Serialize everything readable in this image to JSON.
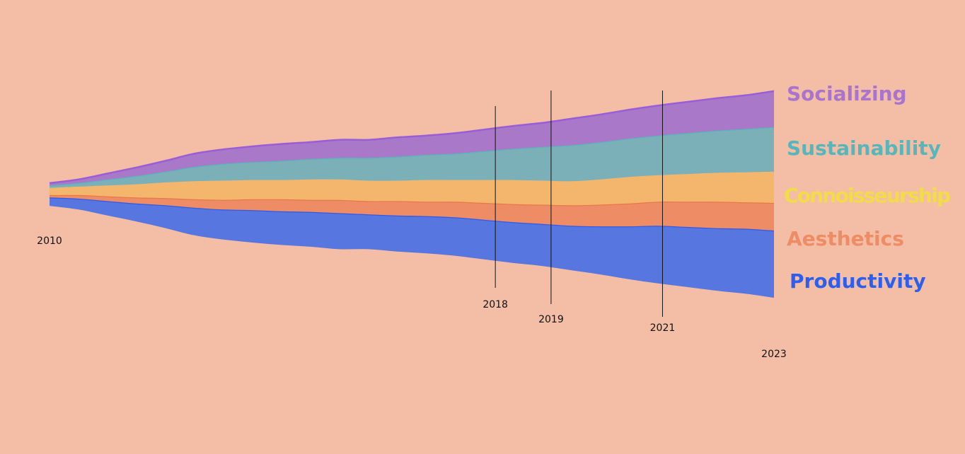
{
  "chart_data": {
    "type": "area",
    "subtype": "streamgraph",
    "x_start": 2010,
    "x_end": 2023,
    "grid": false,
    "legend_position": "right",
    "background": "#f4bea6",
    "markers": [
      {
        "label": "2010",
        "x": 2010,
        "line": false
      },
      {
        "label": "2018",
        "x": 2018,
        "line": true
      },
      {
        "label": "2019",
        "x": 2019,
        "line": true
      },
      {
        "label": "2021",
        "x": 2021,
        "line": true
      },
      {
        "label": "2023",
        "x": 2023,
        "line": false
      }
    ],
    "series": [
      {
        "name": "Productivity",
        "color": "#5876e0",
        "line_color": "#2f5ae8",
        "text_color": "#2c5ff0",
        "values": [
          14,
          18,
          24,
          30,
          38,
          46,
          50,
          54,
          56,
          58,
          60,
          58,
          60,
          62,
          64,
          66,
          68,
          70,
          74,
          80,
          88,
          96,
          100,
          104,
          108,
          112
        ]
      },
      {
        "name": "Aesthetics",
        "color": "#ee8c66",
        "line_color": "#e8784a",
        "text_color": "#ee8c66",
        "values": [
          4,
          6,
          8,
          10,
          12,
          14,
          16,
          18,
          20,
          20,
          22,
          22,
          24,
          24,
          26,
          28,
          30,
          32,
          34,
          36,
          38,
          40,
          42,
          44,
          44,
          46
        ]
      },
      {
        "name": "Connoisseurship",
        "color": "#f4b66c",
        "line_color": "#f4b66c",
        "text_color": "#f2dc48",
        "values": [
          12,
          14,
          18,
          22,
          26,
          30,
          32,
          32,
          32,
          34,
          34,
          34,
          34,
          36,
          36,
          38,
          40,
          40,
          40,
          42,
          44,
          44,
          46,
          48,
          50,
          52
        ]
      },
      {
        "name": "Sustainability",
        "color": "#7cb0b8",
        "line_color": "#58b6bb",
        "text_color": "#58b6bb",
        "values": [
          4,
          6,
          10,
          14,
          18,
          24,
          28,
          30,
          32,
          34,
          36,
          38,
          40,
          42,
          44,
          48,
          52,
          56,
          60,
          62,
          64,
          66,
          68,
          70,
          72,
          74
        ]
      },
      {
        "name": "Socializing",
        "color": "#a978c8",
        "line_color": "#9a5dd8",
        "text_color": "#a874cc",
        "values": [
          4,
          6,
          10,
          14,
          18,
          22,
          24,
          26,
          28,
          28,
          30,
          30,
          32,
          32,
          34,
          36,
          38,
          40,
          44,
          46,
          48,
          50,
          52,
          54,
          56,
          60
        ]
      }
    ]
  }
}
